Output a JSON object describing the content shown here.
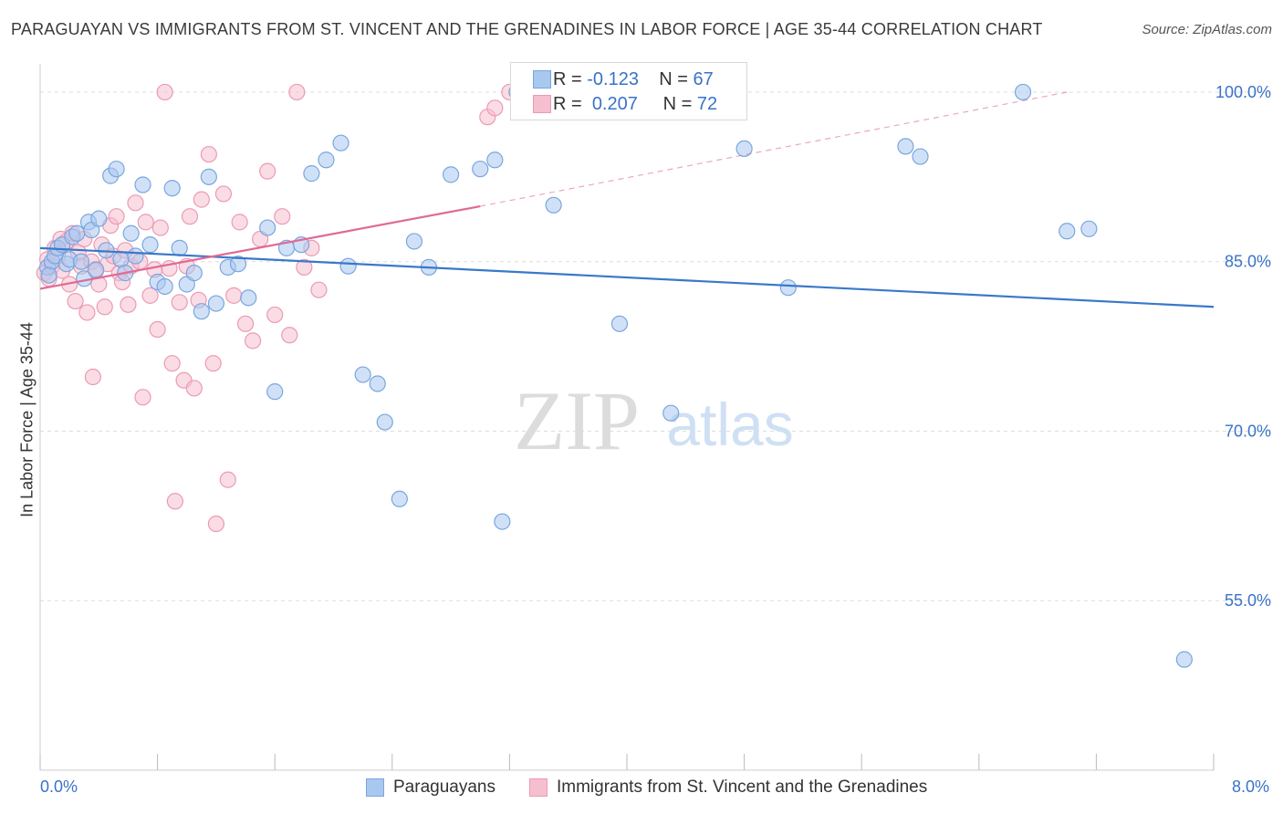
{
  "title": "PARAGUAYAN VS IMMIGRANTS FROM ST. VINCENT AND THE GRENADINES IN LABOR FORCE | AGE 35-44 CORRELATION CHART",
  "source": "Source: ZipAtlas.com",
  "watermark": {
    "zip": "ZIP",
    "atlas": "atlas"
  },
  "legend": {
    "rows": [
      {
        "r_label": "R =",
        "r_value": "-0.123",
        "n_label": "N =",
        "n_value": "67"
      },
      {
        "r_label": "R =",
        "r_value": "0.207",
        "n_label": "N =",
        "n_value": "72"
      }
    ]
  },
  "colors": {
    "blue_fill": "#a9c8f0",
    "blue_stroke": "#7aa6de",
    "blue_line": "#3a78c9",
    "pink_fill": "#f6bfd0",
    "pink_stroke": "#ec9ab4",
    "pink_line": "#e06a95",
    "tick_label": "#3a72c8"
  },
  "chart_data": {
    "type": "scatter",
    "title": "PARAGUAYAN VS IMMIGRANTS FROM ST. VINCENT AND THE GRENADINES IN LABOR FORCE | AGE 35-44 CORRELATION CHART",
    "xlabel": "",
    "ylabel": "In Labor Force | Age 35-44",
    "xlim": [
      0.0,
      8.0
    ],
    "ylim": [
      40.0,
      102.5
    ],
    "x_tick_labels": [
      "0.0%",
      "8.0%"
    ],
    "y_ticks": [
      100.0,
      85.0,
      70.0,
      55.0
    ],
    "y_tick_labels": [
      "100.0%",
      "85.0%",
      "70.0%",
      "55.0%"
    ],
    "grid": true,
    "series": [
      {
        "name": "Paraguayans",
        "color": "#a9c8f0",
        "trend": {
          "x": [
            0.0,
            8.0
          ],
          "y": [
            86.2,
            81.0
          ]
        },
        "points": [
          [
            0.05,
            84.5
          ],
          [
            0.08,
            85.0
          ],
          [
            0.06,
            83.8
          ],
          [
            0.1,
            85.5
          ],
          [
            0.12,
            86.2
          ],
          [
            0.15,
            86.5
          ],
          [
            0.18,
            84.8
          ],
          [
            0.2,
            85.2
          ],
          [
            0.22,
            87.2
          ],
          [
            0.25,
            87.5
          ],
          [
            0.28,
            85.0
          ],
          [
            0.3,
            83.5
          ],
          [
            0.33,
            88.5
          ],
          [
            0.35,
            87.8
          ],
          [
            0.38,
            84.3
          ],
          [
            0.4,
            88.8
          ],
          [
            0.45,
            86.0
          ],
          [
            0.48,
            92.6
          ],
          [
            0.52,
            93.2
          ],
          [
            0.55,
            85.2
          ],
          [
            0.58,
            84.0
          ],
          [
            0.62,
            87.5
          ],
          [
            0.65,
            85.5
          ],
          [
            0.7,
            91.8
          ],
          [
            0.75,
            86.5
          ],
          [
            0.8,
            83.2
          ],
          [
            0.85,
            82.8
          ],
          [
            0.9,
            91.5
          ],
          [
            0.95,
            86.2
          ],
          [
            1.0,
            83.0
          ],
          [
            1.05,
            84.0
          ],
          [
            1.1,
            80.6
          ],
          [
            1.15,
            92.5
          ],
          [
            1.2,
            81.3
          ],
          [
            1.28,
            84.5
          ],
          [
            1.35,
            84.8
          ],
          [
            1.42,
            81.8
          ],
          [
            1.55,
            88.0
          ],
          [
            1.6,
            73.5
          ],
          [
            1.68,
            86.2
          ],
          [
            1.78,
            86.5
          ],
          [
            1.85,
            92.8
          ],
          [
            1.95,
            94.0
          ],
          [
            2.05,
            95.5
          ],
          [
            2.1,
            84.6
          ],
          [
            2.2,
            75.0
          ],
          [
            2.3,
            74.2
          ],
          [
            2.35,
            70.8
          ],
          [
            2.45,
            64.0
          ],
          [
            2.55,
            86.8
          ],
          [
            2.65,
            84.5
          ],
          [
            2.8,
            92.7
          ],
          [
            3.0,
            93.2
          ],
          [
            3.1,
            94.0
          ],
          [
            3.15,
            62.0
          ],
          [
            3.25,
            100.0
          ],
          [
            3.5,
            90.0
          ],
          [
            3.95,
            79.5
          ],
          [
            4.3,
            71.6
          ],
          [
            4.8,
            95.0
          ],
          [
            5.1,
            82.7
          ],
          [
            5.9,
            95.2
          ],
          [
            6.0,
            94.3
          ],
          [
            6.7,
            100.0
          ],
          [
            7.0,
            87.7
          ],
          [
            7.15,
            87.9
          ],
          [
            7.8,
            49.8
          ]
        ]
      },
      {
        "name": "Immigrants from St. Vincent and the Grenadines",
        "color": "#f6bfd0",
        "trend": {
          "x": [
            0.0,
            3.0
          ],
          "y": [
            82.6,
            89.9
          ]
        },
        "trend_dashed": {
          "x": [
            3.0,
            7.0
          ],
          "y": [
            89.9,
            100.0
          ]
        },
        "points": [
          [
            0.03,
            84.0
          ],
          [
            0.05,
            85.2
          ],
          [
            0.06,
            83.5
          ],
          [
            0.08,
            84.6
          ],
          [
            0.1,
            86.2
          ],
          [
            0.12,
            85.5
          ],
          [
            0.14,
            87.0
          ],
          [
            0.15,
            84.2
          ],
          [
            0.18,
            86.8
          ],
          [
            0.2,
            83.0
          ],
          [
            0.22,
            87.5
          ],
          [
            0.24,
            81.5
          ],
          [
            0.26,
            85.8
          ],
          [
            0.28,
            84.6
          ],
          [
            0.3,
            87.0
          ],
          [
            0.32,
            80.5
          ],
          [
            0.35,
            85.0
          ],
          [
            0.36,
            74.8
          ],
          [
            0.38,
            84.2
          ],
          [
            0.4,
            83.0
          ],
          [
            0.42,
            86.5
          ],
          [
            0.44,
            81.0
          ],
          [
            0.46,
            84.8
          ],
          [
            0.48,
            88.2
          ],
          [
            0.5,
            85.5
          ],
          [
            0.52,
            89.0
          ],
          [
            0.54,
            84.0
          ],
          [
            0.56,
            83.2
          ],
          [
            0.58,
            86.0
          ],
          [
            0.6,
            81.2
          ],
          [
            0.62,
            84.6
          ],
          [
            0.65,
            90.2
          ],
          [
            0.68,
            85.0
          ],
          [
            0.7,
            73.0
          ],
          [
            0.72,
            88.5
          ],
          [
            0.75,
            82.0
          ],
          [
            0.78,
            84.3
          ],
          [
            0.8,
            79.0
          ],
          [
            0.82,
            88.0
          ],
          [
            0.85,
            100.0
          ],
          [
            0.88,
            84.4
          ],
          [
            0.9,
            76.0
          ],
          [
            0.92,
            63.8
          ],
          [
            0.95,
            81.4
          ],
          [
            0.98,
            74.5
          ],
          [
            1.0,
            84.6
          ],
          [
            1.02,
            89.0
          ],
          [
            1.05,
            73.8
          ],
          [
            1.08,
            81.6
          ],
          [
            1.1,
            90.5
          ],
          [
            1.15,
            94.5
          ],
          [
            1.18,
            76.0
          ],
          [
            1.2,
            61.8
          ],
          [
            1.25,
            91.0
          ],
          [
            1.28,
            65.7
          ],
          [
            1.32,
            82.0
          ],
          [
            1.36,
            88.5
          ],
          [
            1.4,
            79.5
          ],
          [
            1.45,
            78.0
          ],
          [
            1.5,
            87.0
          ],
          [
            1.55,
            93.0
          ],
          [
            1.6,
            80.3
          ],
          [
            1.65,
            89.0
          ],
          [
            1.7,
            78.5
          ],
          [
            1.75,
            100.0
          ],
          [
            1.8,
            84.5
          ],
          [
            1.85,
            86.2
          ],
          [
            1.9,
            82.5
          ],
          [
            3.05,
            97.8
          ],
          [
            3.1,
            98.6
          ],
          [
            3.2,
            100.0
          ],
          [
            3.4,
            100.0
          ]
        ]
      }
    ]
  }
}
